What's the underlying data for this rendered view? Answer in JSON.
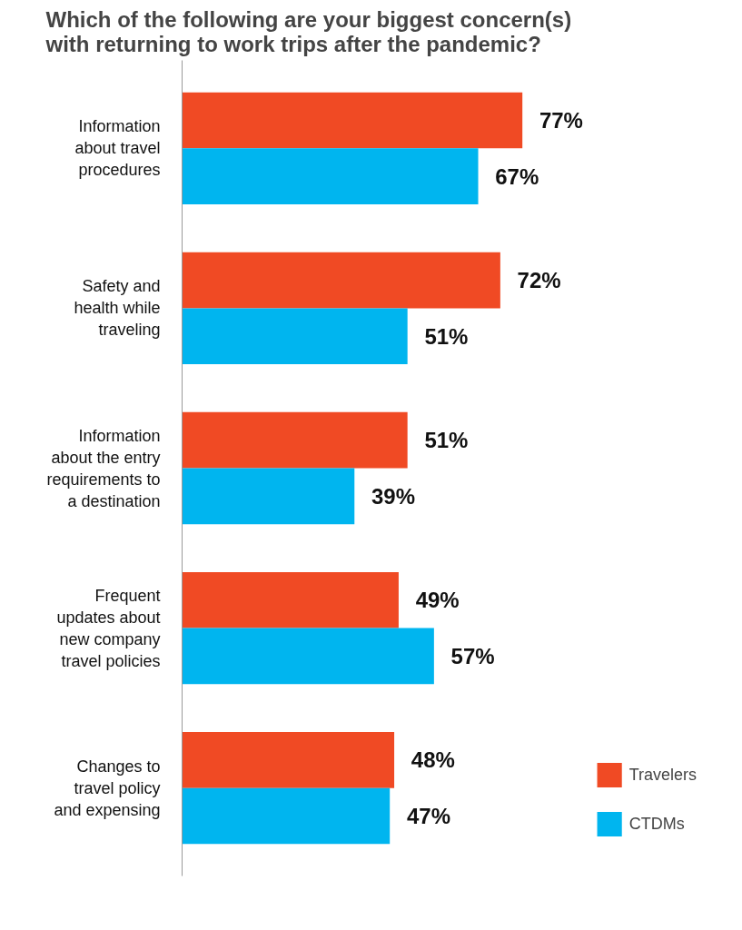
{
  "chart_data": {
    "type": "bar",
    "orientation": "horizontal",
    "title": "Which of the following are your biggest concern(s) with returning to work trips after the pandemic?",
    "categories": [
      "Information about travel procedures",
      "Safety and health while traveling",
      "Information about the entry requirements to a destination",
      "Frequent updates about new company travel policies",
      "Changes to travel policy and expensing"
    ],
    "series": [
      {
        "name": "Travelers",
        "color": "#f04a24",
        "values": [
          77,
          72,
          51,
          49,
          48
        ],
        "value_labels": [
          "77%",
          "72%",
          "51%",
          "49%",
          "48%"
        ]
      },
      {
        "name": "CTDMs",
        "color": "#00b5ef",
        "values": [
          67,
          51,
          39,
          57,
          47
        ],
        "value_labels": [
          "67%",
          "51%",
          "39%",
          "57%",
          "47%"
        ]
      }
    ],
    "grid": false,
    "legend": "bottom right"
  }
}
